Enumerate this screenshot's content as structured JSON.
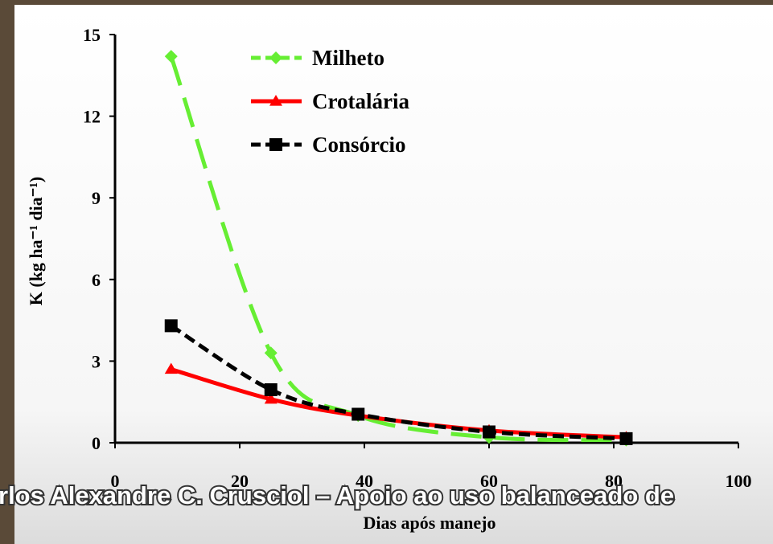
{
  "chart_data": {
    "type": "line",
    "y_label": "K (kg ha⁻¹ dia⁻¹)",
    "x_label": "Dias após manejo",
    "footer": "rlos Alexandre C. Crusciol – Apoio ao uso balanceado de",
    "xlim": [
      0,
      100
    ],
    "xticks": [
      0,
      20,
      40,
      60,
      80,
      100
    ],
    "ylim": [
      0,
      15
    ],
    "yticks": [
      0,
      3,
      6,
      9,
      12,
      15
    ],
    "x": [
      9,
      25,
      39,
      60,
      82
    ],
    "series": [
      {
        "name": "Milheto",
        "color": "#66ee33",
        "marker": "diamond",
        "line_style": "dashed",
        "values": [
          14.2,
          3.3,
          1.0,
          0.2,
          0.1
        ]
      },
      {
        "name": "Crotalária",
        "color": "#ff0000",
        "marker": "triangle",
        "line_style": "solid",
        "values": [
          2.7,
          1.6,
          1.0,
          0.45,
          0.2
        ]
      },
      {
        "name": "Consórcio",
        "color": "#000000",
        "marker": "square",
        "line_style": "dotted",
        "values": [
          4.3,
          1.95,
          1.05,
          0.4,
          0.15
        ]
      }
    ]
  }
}
